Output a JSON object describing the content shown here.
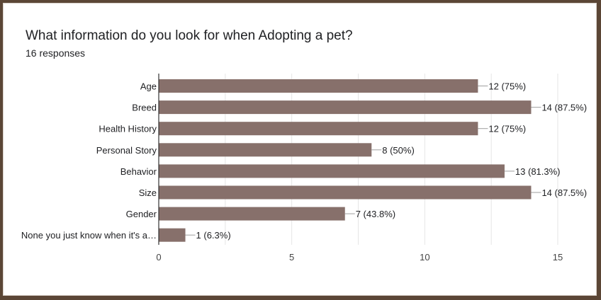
{
  "header": {
    "title": "What information do you look for when Adopting a pet?",
    "responses": "16 responses"
  },
  "colors": {
    "bar": "#87706b",
    "grid": "#e6e6e6",
    "axis": "#333333",
    "text": "#202124",
    "frame": "#5b4636"
  },
  "chart_data": {
    "type": "bar",
    "orientation": "horizontal",
    "categories": [
      "Age",
      "Breed",
      "Health History",
      "Personal Story",
      "Behavior",
      "Size",
      "Gender",
      "None you just know when it's a…"
    ],
    "values": [
      12,
      14,
      12,
      8,
      13,
      14,
      7,
      1
    ],
    "data_labels": [
      "12 (75%)",
      "14 (87.5%)",
      "12 (75%)",
      "8 (50%)",
      "13 (81.3%)",
      "14 (87.5%)",
      "7 (43.8%)",
      "1 (6.3%)"
    ],
    "xlim": [
      0,
      15
    ],
    "xticks": [
      0,
      5,
      10,
      15
    ],
    "xtick_labels": [
      "0",
      "5",
      "10",
      "15"
    ],
    "grid": true,
    "legend": "none"
  }
}
